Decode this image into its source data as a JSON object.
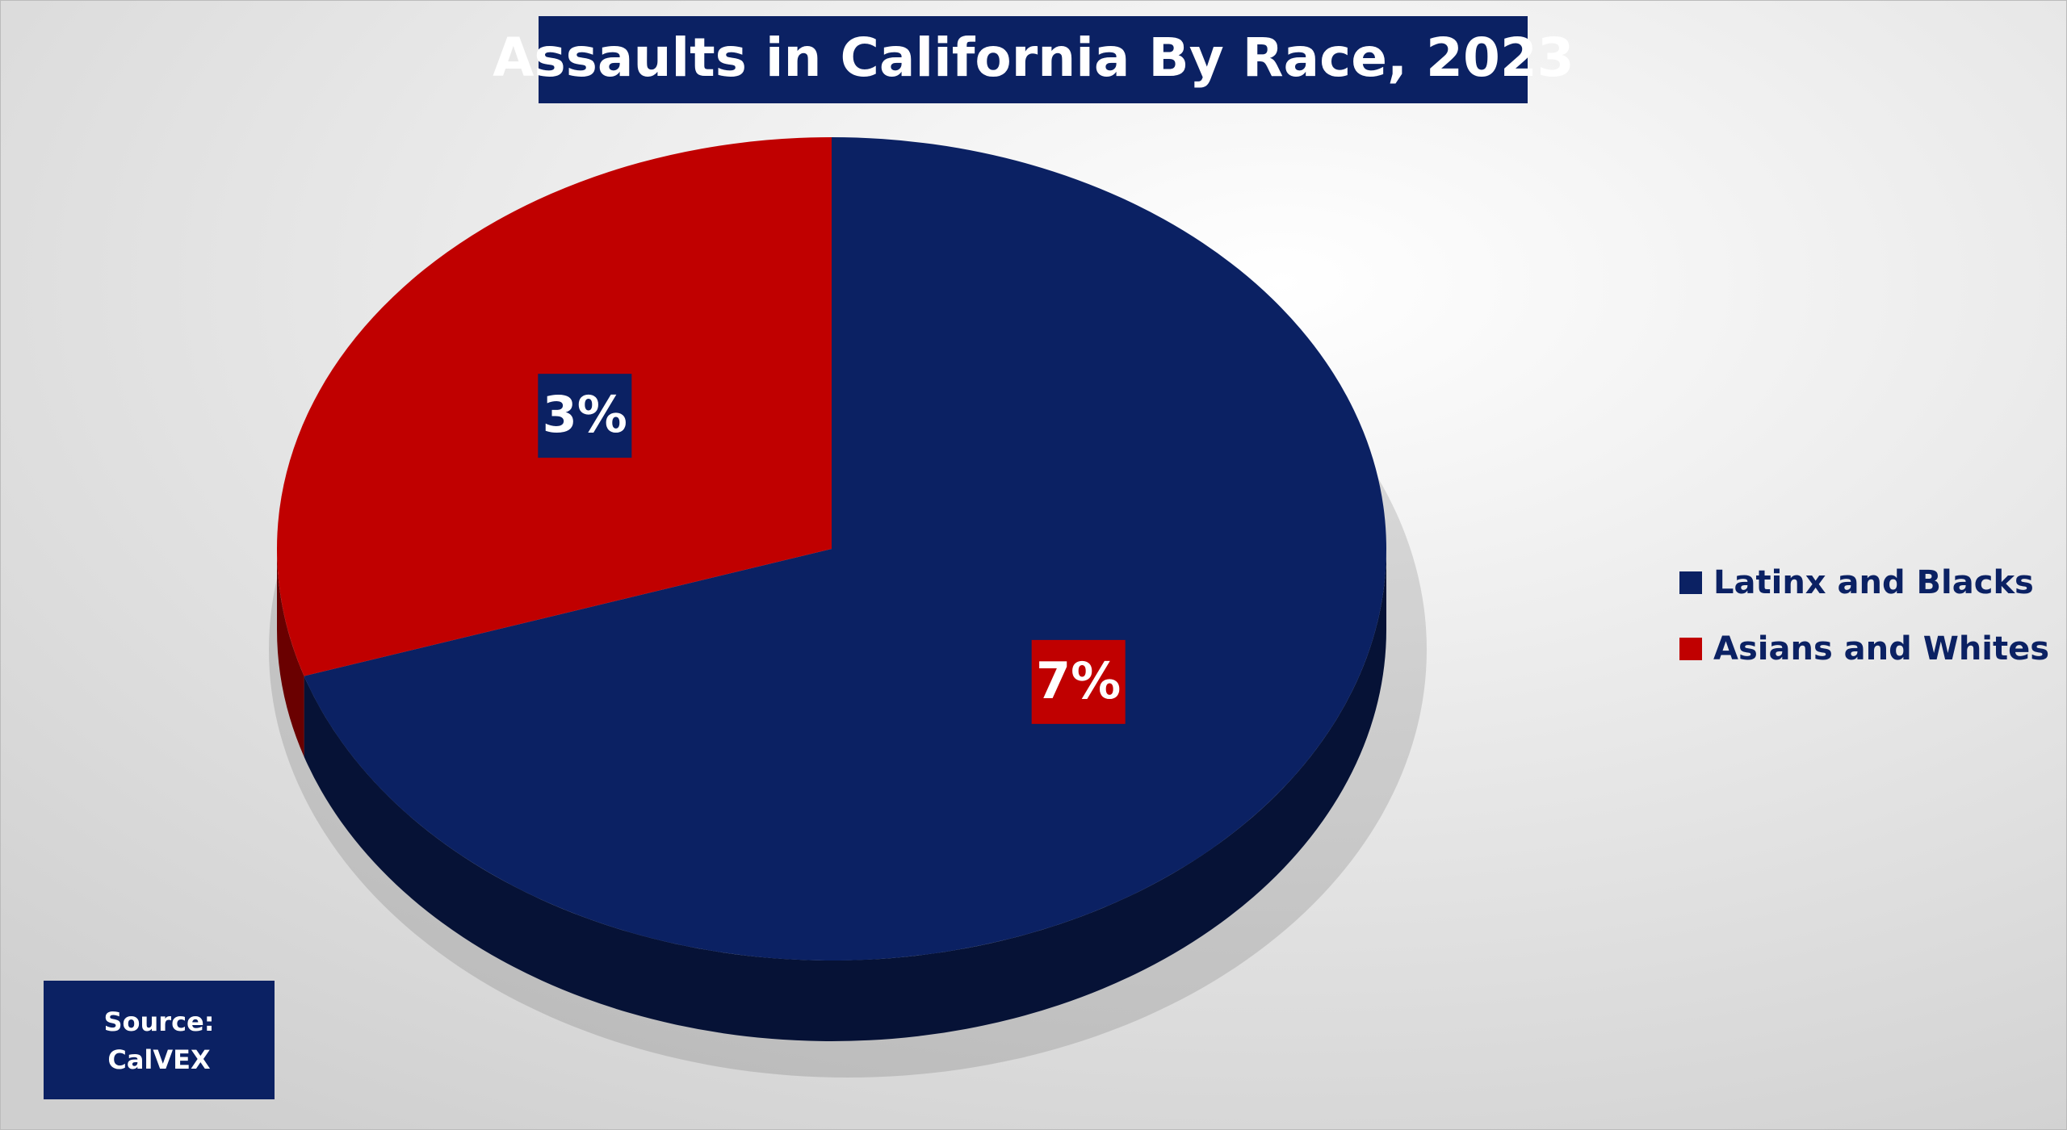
{
  "chart_data": {
    "type": "pie",
    "title": "Assaults in California By Race, 2023",
    "categories": [
      "Latinx and Blacks",
      "Asians and Whites"
    ],
    "values": [
      7,
      3
    ],
    "value_labels": [
      "7%",
      "3%"
    ],
    "colors": [
      "#0b2163",
      "#c00000"
    ],
    "legend": "right",
    "source": [
      "Source:",
      "CalVEX"
    ]
  }
}
